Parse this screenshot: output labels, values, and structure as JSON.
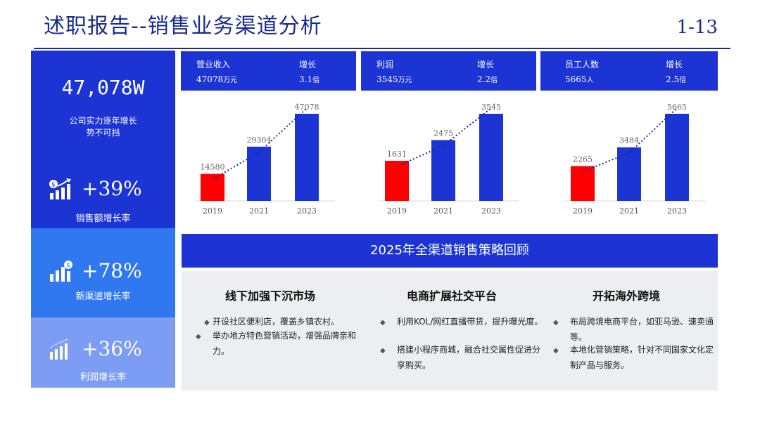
{
  "header": {
    "title": "述职报告--销售业务渠道分析",
    "page_number": "1-13"
  },
  "left_panel": {
    "total_value": "47,078W",
    "caption_line1": "公司实力逐年增长",
    "caption_line2": "势不可挡",
    "metrics": [
      {
        "icon": "money-growth-icon",
        "value": "+39%",
        "label": "销售额增长率"
      },
      {
        "icon": "dollar-bars-icon",
        "value": "+78%",
        "label": "新渠道增长率"
      },
      {
        "icon": "bar-growth-icon",
        "value": "+36%",
        "label": "利润增长率"
      }
    ]
  },
  "info_bars": [
    {
      "label": "营业收入",
      "value": "47078",
      "unit": "万元",
      "growth_label": "增长",
      "growth_value": "3.1",
      "growth_unit": "倍"
    },
    {
      "label": "利润",
      "value": "3545",
      "unit": "万元",
      "growth_label": "增长",
      "growth_value": "2.2",
      "growth_unit": "倍"
    },
    {
      "label": "员工人数",
      "value": "5665",
      "unit": "人",
      "growth_label": "增长",
      "growth_value": "2.5",
      "growth_unit": "倍"
    }
  ],
  "chart_data": [
    {
      "type": "bar",
      "title": "营业收入",
      "categories": [
        "2019",
        "2021",
        "2023"
      ],
      "values": [
        14580,
        29304,
        47078
      ],
      "ylim": [
        0,
        47078
      ],
      "colors": [
        "#ff0000",
        "#1d34d4",
        "#1d34d4"
      ],
      "trendline": true
    },
    {
      "type": "bar",
      "title": "利润",
      "categories": [
        "2019",
        "2021",
        "2023"
      ],
      "values": [
        1631,
        2475,
        3545
      ],
      "ylim": [
        0,
        3545
      ],
      "colors": [
        "#ff0000",
        "#1d34d4",
        "#1d34d4"
      ],
      "trendline": true
    },
    {
      "type": "bar",
      "title": "员工人数",
      "categories": [
        "2019",
        "2021",
        "2023"
      ],
      "values": [
        2265,
        3484,
        5665
      ],
      "data_labels": [
        "2265",
        "3484",
        "5665"
      ],
      "ylim": [
        0,
        5665
      ],
      "colors": [
        "#ff0000",
        "#1d34d4",
        "#1d34d4"
      ],
      "trendline": true
    }
  ],
  "strategy": {
    "band_title": "2025年全渠道销售策略回顾",
    "columns": [
      {
        "title": "线下加强下沉市场",
        "items": [
          "开设社区便利店，覆盖乡镇农村。",
          "举办地方特色营销活动，增强品牌亲和力。"
        ]
      },
      {
        "title": "电商扩展社交平台",
        "items": [
          "利用KOL/网红直播带货，提升曝光度。",
          "搭建小程序商城，融合社交属性促进分享购买。"
        ]
      },
      {
        "title": "开拓海外跨境",
        "items": [
          "布局跨境电商平台，如亚马逊、速卖通等。",
          "本地化营销策略，针对不同国家文化定制产品与服务。"
        ]
      }
    ]
  },
  "colors": {
    "primary": "#1d34d4",
    "mid": "#2f78f0",
    "light": "#7d9cf4",
    "highlight": "#ff0000",
    "panel": "#eceef2"
  }
}
